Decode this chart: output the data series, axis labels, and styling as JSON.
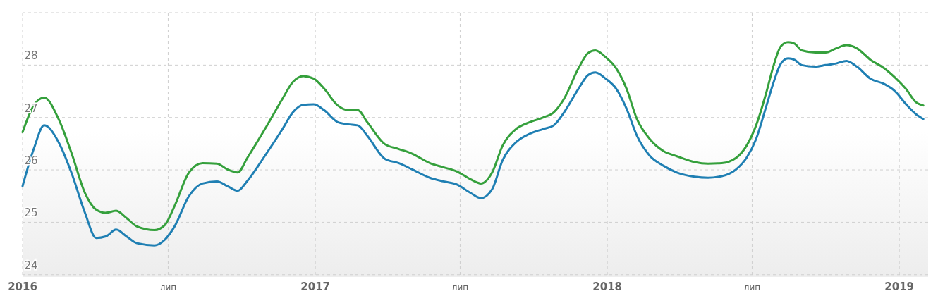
{
  "chart_data": {
    "type": "line",
    "x": [
      "2016-01-01",
      "2016-01-15",
      "2016-01-28",
      "2016-02-15",
      "2016-03-02",
      "2016-03-19",
      "2016-04-02",
      "2016-04-14",
      "2016-04-27",
      "2016-05-10",
      "2016-05-23",
      "2016-06-14",
      "2016-06-27",
      "2016-07-09",
      "2016-07-27",
      "2016-08-13",
      "2016-08-31",
      "2016-09-13",
      "2016-09-26",
      "2016-10-08",
      "2016-10-30",
      "2016-11-21",
      "2016-12-04",
      "2016-12-17",
      "2016-12-30",
      "2017-01-12",
      "2017-01-29",
      "2017-02-11",
      "2017-02-23",
      "2017-03-07",
      "2017-03-29",
      "2017-04-15",
      "2017-05-02",
      "2017-05-24",
      "2017-06-10",
      "2017-06-27",
      "2017-07-14",
      "2017-07-27",
      "2017-08-10",
      "2017-08-23",
      "2017-09-09",
      "2017-09-26",
      "2017-10-13",
      "2017-10-26",
      "2017-11-08",
      "2017-11-26",
      "2017-12-08",
      "2017-12-17",
      "2017-12-30",
      "2018-01-12",
      "2018-01-25",
      "2018-02-07",
      "2018-02-23",
      "2018-03-12",
      "2018-03-29",
      "2018-04-20",
      "2018-05-07",
      "2018-05-24",
      "2018-06-11",
      "2018-06-24",
      "2018-07-06",
      "2018-07-19",
      "2018-07-28",
      "2018-08-06",
      "2018-08-15",
      "2018-08-23",
      "2018-09-01",
      "2018-09-18",
      "2018-10-01",
      "2018-10-14",
      "2018-10-27",
      "2018-11-09",
      "2018-11-26",
      "2018-12-13",
      "2018-12-26",
      "2019-01-09",
      "2019-01-22",
      "2019-01-31"
    ],
    "series": [
      {
        "color": "#35a03c",
        "values": [
          26.72,
          27.23,
          27.38,
          26.97,
          26.33,
          25.56,
          25.24,
          25.18,
          25.22,
          25.08,
          24.92,
          24.85,
          24.95,
          25.31,
          25.95,
          26.13,
          26.12,
          26.01,
          25.95,
          26.23,
          26.78,
          27.36,
          27.68,
          27.79,
          27.74,
          27.55,
          27.23,
          27.14,
          27.14,
          26.91,
          26.49,
          26.4,
          26.31,
          26.13,
          26.05,
          25.97,
          25.82,
          25.74,
          25.95,
          26.46,
          26.78,
          26.91,
          27.0,
          27.1,
          27.36,
          27.94,
          28.23,
          28.28,
          28.15,
          27.94,
          27.55,
          26.97,
          26.59,
          26.36,
          26.26,
          26.15,
          26.12,
          26.13,
          26.23,
          26.46,
          26.85,
          27.49,
          28.0,
          28.36,
          28.44,
          28.41,
          28.28,
          28.24,
          28.24,
          28.32,
          28.38,
          28.32,
          28.1,
          27.94,
          27.77,
          27.55,
          27.29,
          27.23
        ]
      },
      {
        "color": "#1f7fb3",
        "values": [
          25.69,
          26.4,
          26.85,
          26.53,
          25.95,
          25.18,
          24.7,
          24.73,
          24.86,
          24.73,
          24.6,
          24.56,
          24.67,
          24.92,
          25.5,
          25.74,
          25.78,
          25.69,
          25.6,
          25.79,
          26.27,
          26.78,
          27.1,
          27.24,
          27.25,
          27.14,
          26.91,
          26.87,
          26.85,
          26.65,
          26.21,
          26.13,
          26.01,
          25.85,
          25.78,
          25.72,
          25.56,
          25.46,
          25.63,
          26.18,
          26.53,
          26.69,
          26.78,
          26.85,
          27.1,
          27.55,
          27.81,
          27.86,
          27.74,
          27.55,
          27.17,
          26.65,
          26.27,
          26.08,
          25.95,
          25.87,
          25.85,
          25.88,
          26.01,
          26.23,
          26.59,
          27.23,
          27.68,
          28.03,
          28.13,
          28.1,
          28.0,
          27.97,
          28.0,
          28.03,
          28.08,
          27.97,
          27.74,
          27.64,
          27.51,
          27.26,
          27.06,
          26.97
        ]
      }
    ],
    "xlim": [
      "2016-01-01",
      "2019-02-06"
    ],
    "xticks": [
      {
        "value": "2016-01-01",
        "label": "2016"
      },
      {
        "value": "2016-07-01",
        "label": "лип"
      },
      {
        "value": "2017-01-01",
        "label": "2017"
      },
      {
        "value": "2017-07-01",
        "label": "лип"
      },
      {
        "value": "2018-01-01",
        "label": "2018"
      },
      {
        "value": "2018-07-01",
        "label": "лип"
      },
      {
        "value": "2019-01-01",
        "label": "2019"
      }
    ],
    "ylim": [
      23.97,
      29.0
    ],
    "yticks": [
      24,
      25,
      26,
      27,
      28,
      {
        "value": 29,
        "label": null
      }
    ],
    "grid": true,
    "line_style": "solid"
  }
}
